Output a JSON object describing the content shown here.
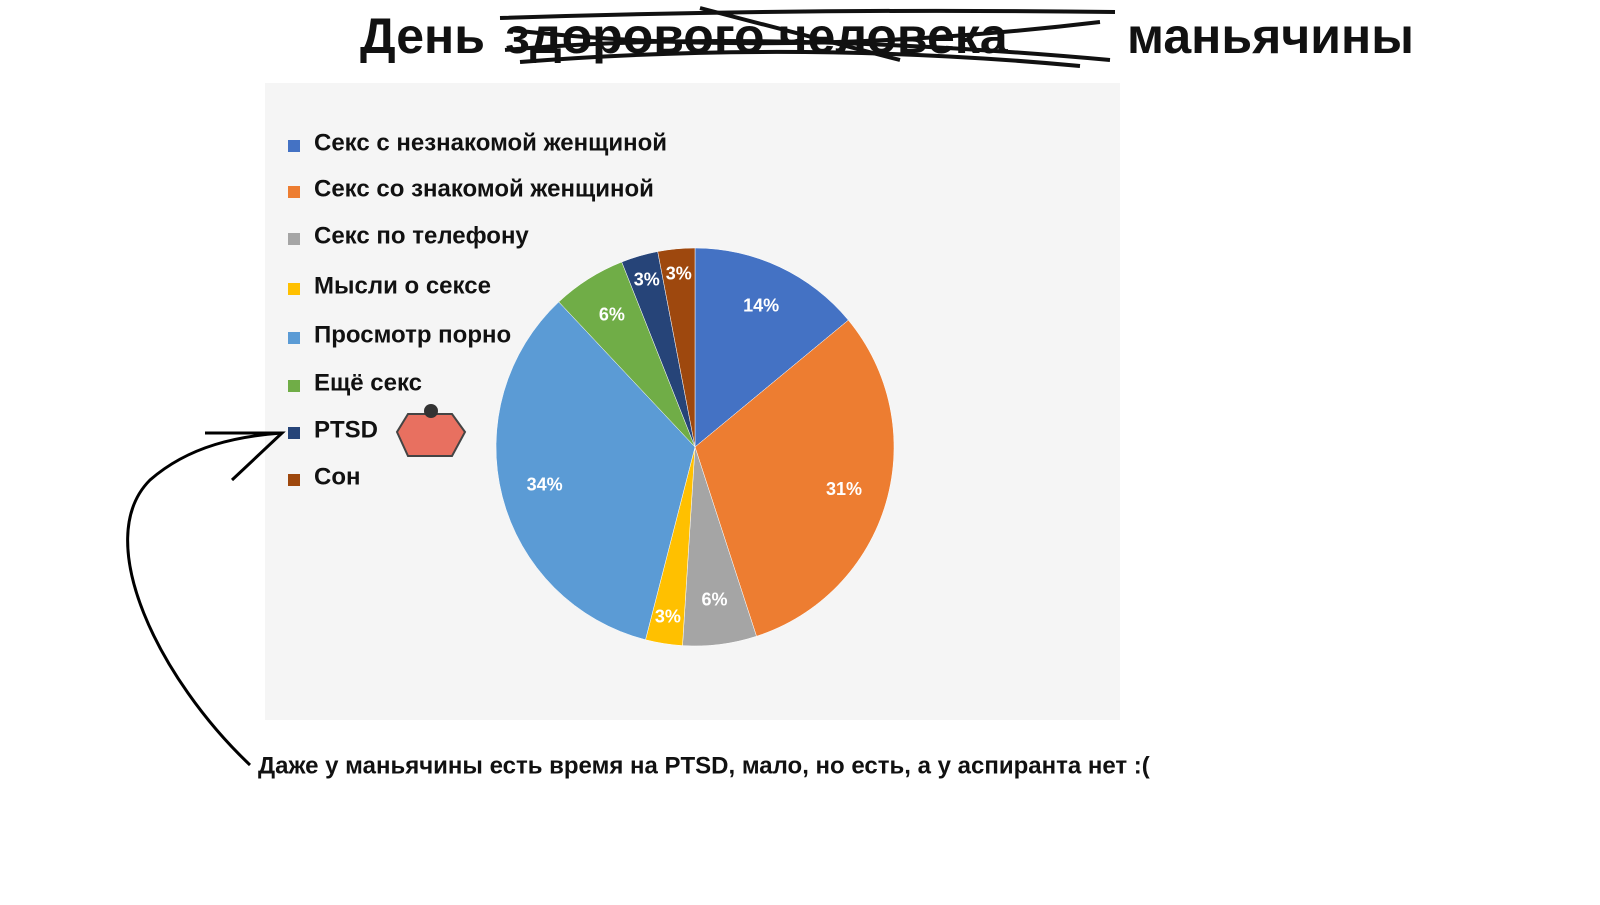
{
  "chart_data": {
    "type": "pie",
    "title": "День",
    "struck_title": "здорового человека",
    "title_suffix": "маньячины",
    "annotation": "Даже у маньячины есть время на PTSD, мало, но есть,  а у аспиранта нет :(",
    "categories": [
      "Секс с незнакомой женщиной",
      "Секс со знакомой женщиной",
      "Секс по телефону",
      "Мысли о сексе",
      "Просмотр порно",
      "Ещё секс",
      "PTSD",
      "Сон"
    ],
    "values": [
      14,
      31,
      6,
      3,
      34,
      6,
      3,
      3
    ],
    "value_labels": [
      "14%",
      "31%",
      "6%",
      "3%",
      "34%",
      "6%",
      "3%",
      "3%"
    ],
    "colors": [
      "#4472c4",
      "#ed7d31",
      "#a5a5a5",
      "#ffc000",
      "#5b9bd5",
      "#70ad47",
      "#264478",
      "#9e480e"
    ],
    "legend": "left"
  }
}
